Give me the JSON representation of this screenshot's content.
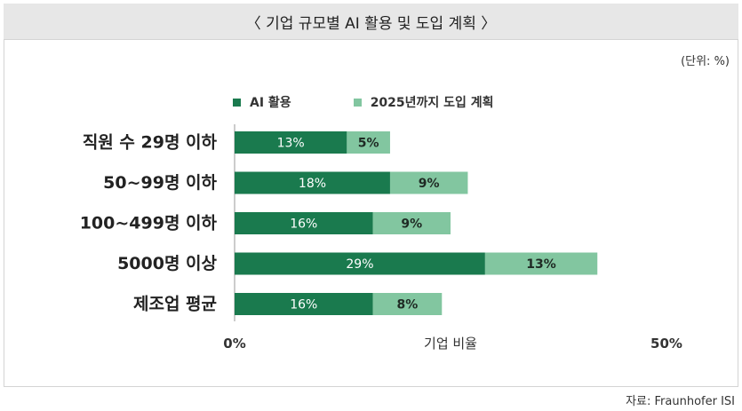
{
  "header": {
    "title": "〈 기업 규모별 AI 활용 및 도입 계획 〉"
  },
  "unit_label": "(단위: %)",
  "footer": {
    "source": "자료: Fraunhofer ISI"
  },
  "colors": {
    "primary": "#1a7a4e",
    "secondary": "#82c6a0",
    "header_bg": "#e7e7e7"
  },
  "chart_data": {
    "type": "bar",
    "orientation": "horizontal",
    "stacked": true,
    "categories": [
      "직원 수 29명 이하",
      "50~99명 이하",
      "100~499명 이하",
      "5000명 이상",
      "제조업 평균"
    ],
    "series": [
      {
        "name": "AI 활용",
        "values": [
          13,
          18,
          16,
          29,
          16
        ],
        "labels": [
          "13%",
          "18%",
          "16%",
          "29%",
          "16%"
        ]
      },
      {
        "name": "2025년까지 도입 계획",
        "values": [
          5,
          9,
          9,
          13,
          8
        ],
        "labels": [
          "5%",
          "9%",
          "9%",
          "13%",
          "8%"
        ]
      }
    ],
    "xlabel": "기업 비율",
    "xlim": [
      0,
      50
    ],
    "xtick_labels": [
      "0%",
      "50%"
    ],
    "legend_position": "top",
    "grid": false
  }
}
